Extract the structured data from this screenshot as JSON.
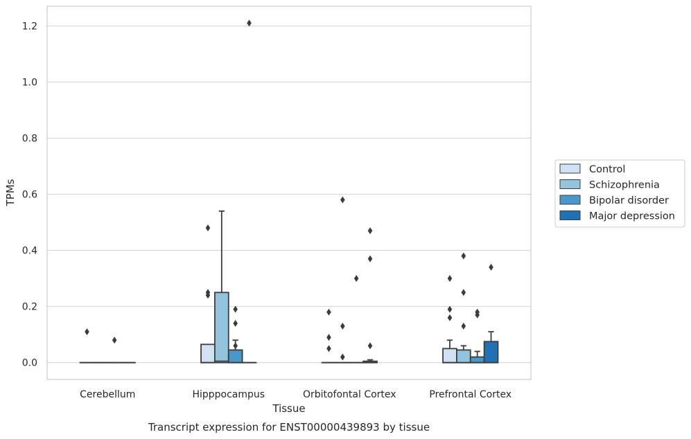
{
  "chart_data": {
    "type": "box",
    "title": "",
    "caption": "Transcript expression for ENST00000439893 by tissue",
    "xlabel": "Tissue",
    "ylabel": "TPMs",
    "ylim": [
      -0.06,
      1.27
    ],
    "yticks": [
      "0.0",
      "0.2",
      "0.4",
      "0.6",
      "0.8",
      "1.0",
      "1.2"
    ],
    "grid": true,
    "legend_position": "right",
    "categories": [
      "Cerebellum",
      "Hipppocampus",
      "Orbitofontal Cortex",
      "Prefrontal Cortex"
    ],
    "series": [
      {
        "name": "Control",
        "color": "#cfe1f2",
        "boxes": [
          {
            "q1": 0,
            "median": 0,
            "q3": 0,
            "whisker_low": 0,
            "whisker_high": 0,
            "outliers": [
              0.11
            ]
          },
          {
            "q1": 0,
            "median": 0,
            "q3": 0.065,
            "whisker_low": 0,
            "whisker_high": 0.065,
            "outliers": [
              0.24,
              0.25,
              0.48
            ]
          },
          {
            "q1": 0,
            "median": 0,
            "q3": 0,
            "whisker_low": 0,
            "whisker_high": 0,
            "outliers": [
              0.05,
              0.09,
              0.18
            ]
          },
          {
            "q1": 0,
            "median": 0,
            "q3": 0.05,
            "whisker_low": 0,
            "whisker_high": 0.08,
            "outliers": [
              0.16,
              0.19,
              0.3
            ]
          }
        ]
      },
      {
        "name": "Schizophrenia",
        "color": "#93c4de",
        "boxes": [
          {
            "q1": 0,
            "median": 0,
            "q3": 0,
            "whisker_low": 0,
            "whisker_high": 0,
            "outliers": []
          },
          {
            "q1": 0,
            "median": 0.005,
            "q3": 0.25,
            "whisker_low": 0,
            "whisker_high": 0.54,
            "outliers": []
          },
          {
            "q1": 0,
            "median": 0,
            "q3": 0,
            "whisker_low": 0,
            "whisker_high": 0,
            "outliers": [
              0.02,
              0.13,
              0.58
            ]
          },
          {
            "q1": 0,
            "median": 0,
            "q3": 0.045,
            "whisker_low": 0,
            "whisker_high": 0.06,
            "outliers": [
              0.13,
              0.25,
              0.38
            ]
          }
        ]
      },
      {
        "name": "Bipolar disorder",
        "color": "#4a98c9",
        "boxes": [
          {
            "q1": 0,
            "median": 0,
            "q3": 0,
            "whisker_low": 0,
            "whisker_high": 0,
            "outliers": [
              0.08
            ]
          },
          {
            "q1": 0,
            "median": 0,
            "q3": 0.045,
            "whisker_low": 0,
            "whisker_high": 0.08,
            "outliers": [
              0.06,
              0.14,
              0.19
            ]
          },
          {
            "q1": 0,
            "median": 0,
            "q3": 0,
            "whisker_low": 0,
            "whisker_high": 0,
            "outliers": [
              0.3
            ]
          },
          {
            "q1": 0,
            "median": 0,
            "q3": 0.02,
            "whisker_low": 0,
            "whisker_high": 0.04,
            "outliers": [
              0.17,
              0.18
            ]
          }
        ]
      },
      {
        "name": "Major depression",
        "color": "#2171b5",
        "boxes": [
          {
            "q1": 0,
            "median": 0,
            "q3": 0,
            "whisker_low": 0,
            "whisker_high": 0,
            "outliers": []
          },
          {
            "q1": 0,
            "median": 0,
            "q3": 0,
            "whisker_low": 0,
            "whisker_high": 0,
            "outliers": [
              1.21
            ]
          },
          {
            "q1": 0,
            "median": 0,
            "q3": 0.005,
            "whisker_low": 0,
            "whisker_high": 0.01,
            "outliers": [
              0.06,
              0.37,
              0.47
            ]
          },
          {
            "q1": 0,
            "median": 0,
            "q3": 0.075,
            "whisker_low": 0,
            "whisker_high": 0.11,
            "outliers": [
              0.34
            ]
          }
        ]
      }
    ]
  }
}
